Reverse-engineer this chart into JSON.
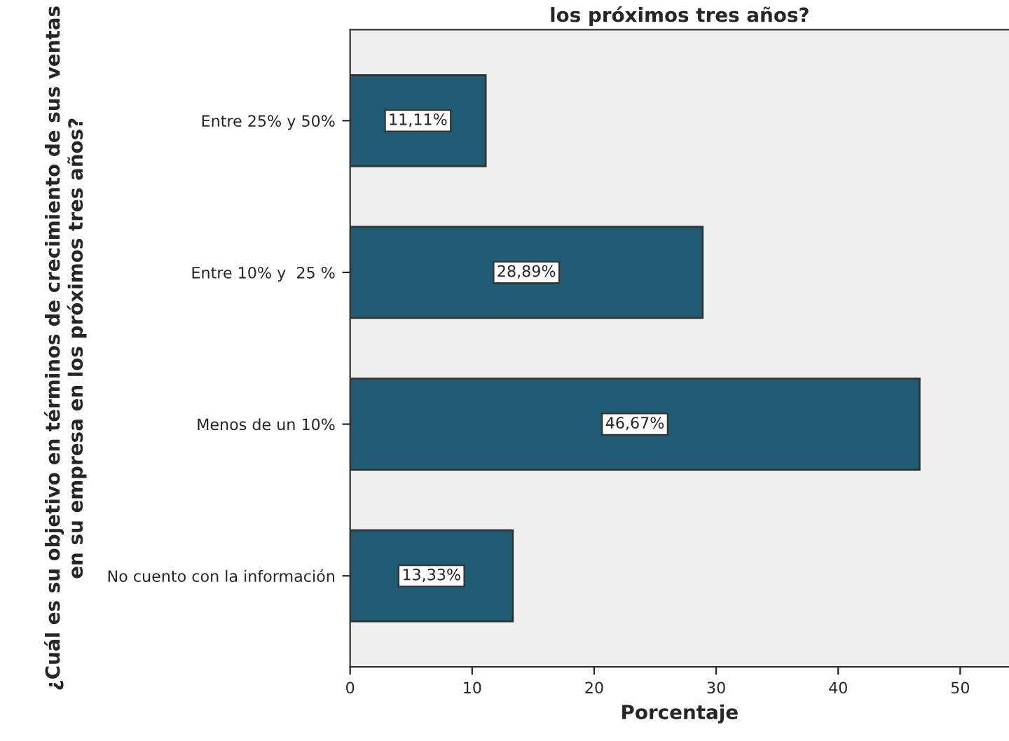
{
  "chart_data": {
    "type": "bar",
    "orientation": "horizontal",
    "title": "los próximos tres años?",
    "xlabel": "Porcentaje",
    "ylabel": "¿Cuál es su objetivo en términos de crecimiento de sus ventas en su empresa en los próximos tres años?",
    "categories": [
      "Entre 25% y 50%",
      "Entre 10% y  25 %",
      "Menos de un 10%",
      "No cuento con la información"
    ],
    "values": [
      11.11,
      28.89,
      46.67,
      13.33
    ],
    "color": "#1f5c73",
    "value_labels": [
      "11,11%",
      "28,89%",
      "46,67%",
      "13,33%"
    ],
    "xlim": [
      0,
      54
    ],
    "xticks": [
      0,
      10,
      20,
      30,
      40,
      50
    ],
    "grid": false,
    "legend": false
  }
}
